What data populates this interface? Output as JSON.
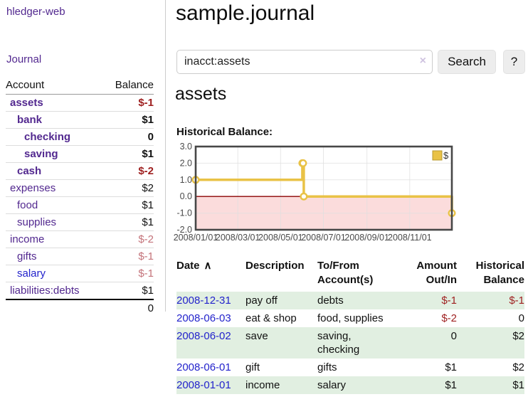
{
  "colors": {
    "accent_purple": "#52288f",
    "link_blue": "#2323cc",
    "negative_strong": "#9e1f1f",
    "negative_soft": "#c4737a",
    "row_green": "#e1efe1",
    "series_gold": "#e9c246"
  },
  "sidebar": {
    "app_title": "hledger-web",
    "journal_label": "Journal",
    "accounts_table": {
      "headers": {
        "account": "Account",
        "balance": "Balance"
      },
      "rows": [
        {
          "name": "assets",
          "indent": 1,
          "bold": true,
          "balance": "$-1",
          "balance_class": "neg-strong",
          "link": "visited"
        },
        {
          "name": "bank",
          "indent": 2,
          "bold": true,
          "balance": "$1",
          "balance_class": "pos",
          "link": "visited"
        },
        {
          "name": "checking",
          "indent": 3,
          "bold": true,
          "balance": "0",
          "balance_class": "pos",
          "link": "visited"
        },
        {
          "name": "saving",
          "indent": 3,
          "bold": true,
          "balance": "$1",
          "balance_class": "pos",
          "link": "visited"
        },
        {
          "name": "cash",
          "indent": 2,
          "bold": true,
          "balance": "$-2",
          "balance_class": "neg-strong",
          "link": "visited"
        },
        {
          "name": "expenses",
          "indent": 1,
          "bold": false,
          "balance": "$2",
          "balance_class": "pos",
          "link": "visited"
        },
        {
          "name": "food",
          "indent": 2,
          "bold": false,
          "balance": "$1",
          "balance_class": "pos",
          "link": "visited"
        },
        {
          "name": "supplies",
          "indent": 2,
          "bold": false,
          "balance": "$1",
          "balance_class": "pos",
          "link": "visited"
        },
        {
          "name": "income",
          "indent": 1,
          "bold": false,
          "balance": "$-2",
          "balance_class": "neg-soft",
          "link": "visited"
        },
        {
          "name": "gifts",
          "indent": 2,
          "bold": false,
          "balance": "$-1",
          "balance_class": "neg-soft",
          "link": "visited"
        },
        {
          "name": "salary",
          "indent": 2,
          "bold": false,
          "balance": "$-1",
          "balance_class": "neg-soft",
          "link": "unvisited"
        },
        {
          "name": "liabilities:debts",
          "indent": 1,
          "bold": false,
          "balance": "$1",
          "balance_class": "pos",
          "link": "visited"
        }
      ],
      "total": "0"
    }
  },
  "main": {
    "page_title": "sample.journal",
    "search": {
      "value": "inacct:assets",
      "clear_icon": "×",
      "button_label": "Search",
      "help_label": "?"
    },
    "account_heading": "assets",
    "chart_label": "Historical Balance:"
  },
  "chart_data": {
    "type": "line",
    "step": true,
    "title": "Historical Balance:",
    "series": [
      {
        "name": "$",
        "color": "#e9c246",
        "points": [
          [
            "2008-01-01",
            1
          ],
          [
            "2008-06-01",
            2
          ],
          [
            "2008-06-02",
            2
          ],
          [
            "2008-06-03",
            0
          ],
          [
            "2008-12-31",
            -1
          ]
        ]
      }
    ],
    "x_range": [
      "2008-01-01",
      "2008-12-31"
    ],
    "x_ticks": [
      {
        "date": "2008-01-01",
        "label": "2008/01/01"
      },
      {
        "date": "2008-03-01",
        "label": "2008/03/01"
      },
      {
        "date": "2008-05-01",
        "label": "2008/05/01"
      },
      {
        "date": "2008-07-01",
        "label": "2008/07/01"
      },
      {
        "date": "2008-09-01",
        "label": "2008/09/01"
      },
      {
        "date": "2008-11-01",
        "label": "2008/11/01"
      }
    ],
    "y_ticks": [
      3,
      2,
      1,
      0,
      -1,
      -2
    ],
    "ylim": [
      -2,
      3
    ],
    "grid": true,
    "legend_position": "top-right",
    "legend_label": "$",
    "negative_region_color": "#fbdcdc",
    "zero_line_color": "#8b0000",
    "grid_color": "#e0e0e0",
    "border_color": "#474747",
    "tick_label_color": "#4a4a4a"
  },
  "register_table": {
    "headers": [
      {
        "lines": [
          "Date"
        ],
        "align": "left",
        "sort_icon": "∧"
      },
      {
        "lines": [
          "Description"
        ],
        "align": "left"
      },
      {
        "lines": [
          "To/From",
          "Account(s)"
        ],
        "align": "left"
      },
      {
        "lines": [
          "Amount",
          "Out/In"
        ],
        "align": "right"
      },
      {
        "lines": [
          "Historical",
          "Balance"
        ],
        "align": "right"
      }
    ],
    "rows": [
      {
        "date": "2008-12-31",
        "description": "pay off",
        "accounts": "debts",
        "amount": "$-1",
        "amount_neg": true,
        "balance": "$-1",
        "balance_neg": true,
        "shaded": true
      },
      {
        "date": "2008-06-03",
        "description": "eat & shop",
        "accounts": "food, supplies",
        "amount": "$-2",
        "amount_neg": true,
        "balance": "0",
        "balance_neg": false,
        "shaded": false
      },
      {
        "date": "2008-06-02",
        "description": "save",
        "accounts": "saving, checking",
        "amount": "0",
        "amount_neg": false,
        "balance": "$2",
        "balance_neg": false,
        "shaded": true
      },
      {
        "date": "2008-06-01",
        "description": "gift",
        "accounts": "gifts",
        "amount": "$1",
        "amount_neg": false,
        "balance": "$2",
        "balance_neg": false,
        "shaded": false
      },
      {
        "date": "2008-01-01",
        "description": "income",
        "accounts": "salary",
        "amount": "$1",
        "amount_neg": false,
        "balance": "$1",
        "balance_neg": false,
        "shaded": true
      }
    ]
  }
}
